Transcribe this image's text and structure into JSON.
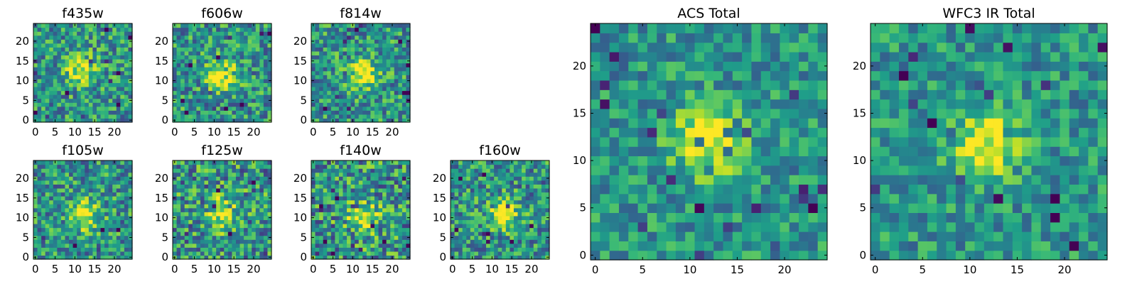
{
  "chart_data": [
    {
      "type": "heatmap",
      "title": "f435w",
      "xlim": [
        0,
        24
      ],
      "ylim": [
        0,
        24
      ],
      "x_ticks": [
        0,
        5,
        10,
        15,
        20
      ],
      "y_ticks": [
        0,
        5,
        10,
        15,
        20
      ],
      "colormap": "viridis",
      "peak_center": [
        11.5,
        12.5
      ],
      "noise_level": 0.3
    },
    {
      "type": "heatmap",
      "title": "f606w",
      "xlim": [
        0,
        24
      ],
      "ylim": [
        0,
        24
      ],
      "x_ticks": [
        0,
        5,
        10,
        15,
        20
      ],
      "y_ticks": [
        0,
        5,
        10,
        15,
        20
      ],
      "colormap": "viridis",
      "peak_center": [
        12.0,
        11.5
      ],
      "noise_level": 0.3
    },
    {
      "type": "heatmap",
      "title": "f814w",
      "xlim": [
        0,
        24
      ],
      "ylim": [
        0,
        24
      ],
      "x_ticks": [
        0,
        5,
        10,
        15,
        20
      ],
      "y_ticks": [
        0,
        5,
        10,
        15,
        20
      ],
      "colormap": "viridis",
      "peak_center": [
        12.5,
        11.5
      ],
      "noise_level": 0.3
    },
    {
      "type": "heatmap",
      "title": "f105w",
      "xlim": [
        0,
        24
      ],
      "ylim": [
        0,
        24
      ],
      "x_ticks": [
        0,
        5,
        10,
        15,
        20
      ],
      "y_ticks": [
        0,
        5,
        10,
        15,
        20
      ],
      "colormap": "viridis",
      "peak_center": [
        12.5,
        10.5
      ],
      "noise_level": 0.3
    },
    {
      "type": "heatmap",
      "title": "f125w",
      "xlim": [
        0,
        24
      ],
      "ylim": [
        0,
        24
      ],
      "x_ticks": [
        0,
        5,
        10,
        15,
        20
      ],
      "y_ticks": [
        0,
        5,
        10,
        15,
        20
      ],
      "colormap": "viridis",
      "peak_center": [
        12.0,
        11.0
      ],
      "noise_level": 0.35
    },
    {
      "type": "heatmap",
      "title": "f140w",
      "xlim": [
        0,
        24
      ],
      "ylim": [
        0,
        24
      ],
      "x_ticks": [
        0,
        5,
        10,
        15,
        20
      ],
      "y_ticks": [
        0,
        5,
        10,
        15,
        20
      ],
      "colormap": "viridis",
      "peak_center": [
        12.5,
        10.5
      ],
      "noise_level": 0.35
    },
    {
      "type": "heatmap",
      "title": "f160w",
      "xlim": [
        0,
        24
      ],
      "ylim": [
        0,
        24
      ],
      "x_ticks": [
        0,
        5,
        10,
        15,
        20
      ],
      "y_ticks": [
        0,
        5,
        10,
        15,
        20
      ],
      "colormap": "viridis",
      "peak_center": [
        13.0,
        11.0
      ],
      "noise_level": 0.3
    },
    {
      "type": "heatmap",
      "title": "ACS Total",
      "xlim": [
        0,
        24
      ],
      "ylim": [
        0,
        24
      ],
      "x_ticks": [
        0,
        5,
        10,
        15,
        20
      ],
      "y_ticks": [
        0,
        5,
        10,
        15,
        20
      ],
      "colormap": "viridis",
      "peak_center": [
        12.0,
        12.0
      ],
      "noise_level": 0.22
    },
    {
      "type": "heatmap",
      "title": "WFC3 IR Total",
      "xlim": [
        0,
        24
      ],
      "ylim": [
        0,
        24
      ],
      "x_ticks": [
        0,
        5,
        10,
        15,
        20
      ],
      "y_ticks": [
        0,
        5,
        10,
        15,
        20
      ],
      "colormap": "viridis",
      "peak_center": [
        12.0,
        12.0
      ],
      "noise_level": 0.22
    }
  ]
}
